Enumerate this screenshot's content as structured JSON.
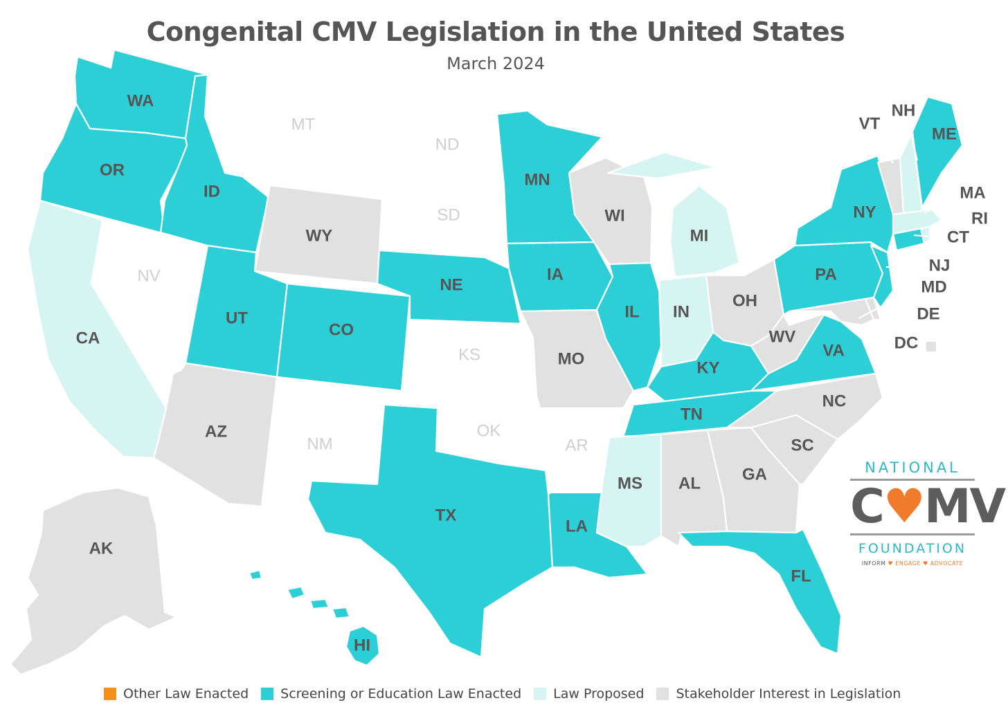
{
  "title": "Congenital CMV  Legislation in the United States",
  "subtitle": "March 2024",
  "colors": {
    "other_law": "#f39019",
    "screening": "#2dcfd6",
    "proposed": "#d6f5f2",
    "stakeholder": "#e2e1e2",
    "none": "#ffffff"
  },
  "legend": [
    {
      "key": "other_law",
      "label": "Other Law Enacted"
    },
    {
      "key": "screening",
      "label": "Screening or Education Law Enacted"
    },
    {
      "key": "proposed",
      "label": "Law Proposed"
    },
    {
      "key": "stakeholder",
      "label": "Stakeholder Interest in Legislation"
    }
  ],
  "states": {
    "WA": "screening",
    "OR": "screening",
    "ID": "screening",
    "UT": "screening",
    "CO": "screening",
    "NE": "screening",
    "MN": "screening",
    "IA": "screening",
    "IL": "screening",
    "KY": "screening",
    "TN": "screening",
    "TX": "screening",
    "LA": "screening",
    "FL": "screening",
    "VA": "screening",
    "PA": "screening",
    "NY": "screening",
    "NJ": "screening",
    "CT": "screening",
    "ME": "screening",
    "HI": "screening",
    "CA": "proposed",
    "MI": "proposed",
    "IN": "proposed",
    "MS": "proposed",
    "NH": "proposed",
    "MA": "proposed",
    "RI": "proposed",
    "WY": "stakeholder",
    "AZ": "stakeholder",
    "AK": "stakeholder",
    "WI": "stakeholder",
    "MO": "stakeholder",
    "OH": "stakeholder",
    "WV": "stakeholder",
    "AL": "stakeholder",
    "GA": "stakeholder",
    "SC": "stakeholder",
    "NC": "stakeholder",
    "VT": "stakeholder",
    "MD": "stakeholder",
    "DE": "stakeholder",
    "DC": "stakeholder",
    "MT": "none",
    "ND": "none",
    "SD": "none",
    "NV": "none",
    "KS": "none",
    "OK": "none",
    "NM": "none",
    "AR": "none"
  },
  "labels": {
    "WA": "WA",
    "OR": "OR",
    "ID": "ID",
    "MT": "MT",
    "ND": "ND",
    "SD": "SD",
    "MN": "MN",
    "WI": "WI",
    "MI": "MI",
    "WY": "WY",
    "NV": "NV",
    "CA": "CA",
    "UT": "UT",
    "CO": "CO",
    "NE": "NE",
    "IA": "IA",
    "IL": "IL",
    "IN": "IN",
    "OH": "OH",
    "KS": "KS",
    "MO": "MO",
    "KY": "KY",
    "WV": "WV",
    "VA": "VA",
    "AZ": "AZ",
    "NM": "NM",
    "OK": "OK",
    "AR": "AR",
    "TN": "TN",
    "NC": "NC",
    "SC": "SC",
    "GA": "GA",
    "AL": "AL",
    "MS": "MS",
    "TX": "TX",
    "LA": "LA",
    "FL": "FL",
    "AK": "AK",
    "HI": "HI",
    "PA": "PA",
    "NY": "NY",
    "ME": "ME",
    "VT": "VT",
    "NH": "NH",
    "MA": "MA",
    "RI": "RI",
    "CT": "CT",
    "NJ": "NJ",
    "MD": "MD",
    "DE": "DE",
    "DC": "DC"
  },
  "logo": {
    "line1": "NATIONAL",
    "line2_a": "C",
    "line2_heart": "♥",
    "line2_b": "MV",
    "line3": "FOUNDATION",
    "tag_a": "INFORM",
    "tag_b": "ENGAGE",
    "tag_c": "ADVOCATE",
    "heart": "♥"
  }
}
